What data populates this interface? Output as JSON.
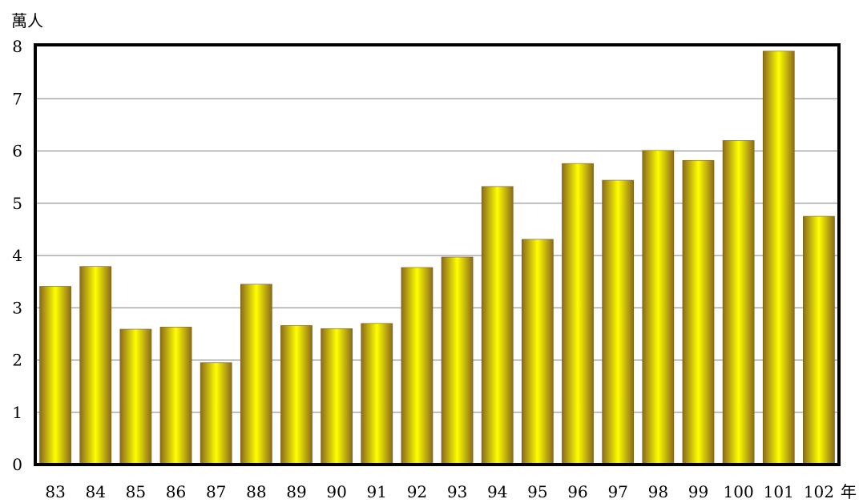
{
  "chart_data": {
    "type": "bar",
    "ylabel": "萬人",
    "xlabel": "年",
    "ylim": [
      0,
      8
    ],
    "yticks": [
      "0",
      "1",
      "2",
      "3",
      "4",
      "5",
      "6",
      "7",
      "8"
    ],
    "grid": true,
    "categories": [
      "83",
      "84",
      "85",
      "86",
      "87",
      "88",
      "89",
      "90",
      "91",
      "92",
      "93",
      "94",
      "95",
      "96",
      "97",
      "98",
      "99",
      "100",
      "101",
      "102"
    ],
    "values": [
      3.41,
      3.79,
      2.59,
      2.63,
      1.95,
      3.45,
      2.66,
      2.6,
      2.7,
      3.77,
      3.97,
      5.32,
      4.31,
      5.76,
      5.44,
      6.01,
      5.82,
      6.2,
      7.91,
      4.75
    ],
    "colors": {
      "bar_center": "#ffff00",
      "bar_edge": "#8b6a1c",
      "frame": "#000000",
      "grid": "#808080"
    }
  }
}
